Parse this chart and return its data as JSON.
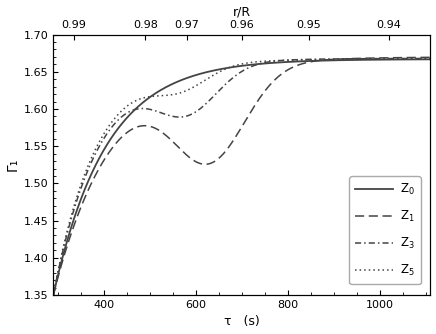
{
  "xlabel": "τ   (s)",
  "ylabel": "Γ₁",
  "top_xlabel": "r/R",
  "xlim": [
    290,
    1110
  ],
  "ylim": [
    1.35,
    1.7
  ],
  "xticks": [
    400,
    600,
    800,
    1000
  ],
  "yticks": [
    1.35,
    1.4,
    1.45,
    1.5,
    1.55,
    1.6,
    1.65,
    1.7
  ],
  "top_xtick_vals": [
    "0.99",
    "0.98",
    "0.97",
    "0.96",
    "0.95",
    "0.94"
  ],
  "top_xtick_tau": [
    335,
    490,
    580,
    700,
    845,
    1020
  ],
  "color": "#444444",
  "legend_labels": [
    "Z$_0$",
    "Z$_1$",
    "Z$_3$",
    "Z$_5$"
  ]
}
